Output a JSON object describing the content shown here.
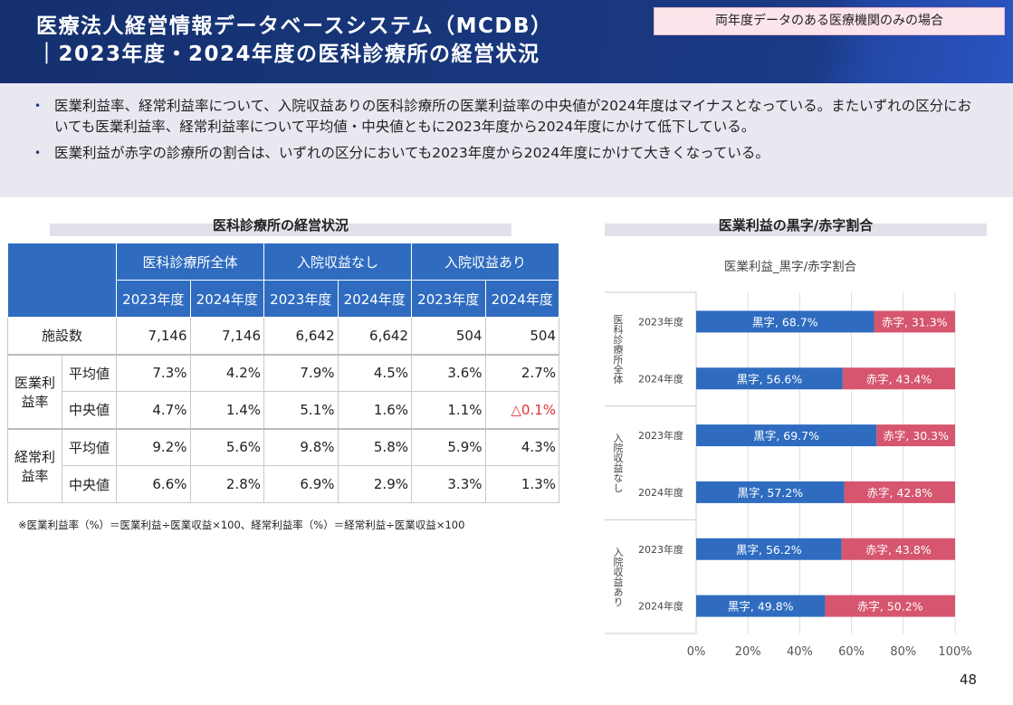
{
  "header": {
    "title_line1": "医療法人経営情報データベースシステム（MCDB）",
    "title_line2": "｜2023年度・2024年度の医科診療所の経営状況",
    "badge": "両年度データのある医療機関のみの場合"
  },
  "summary": [
    "医業利益率、経常利益率について、入院収益ありの医科診療所の医業利益率の中央値が2024年度はマイナスとなっている。またいずれの区分においても医業利益率、経常利益率について平均値・中央値ともに2023年度から2024年度にかけて低下している。",
    "医業利益が赤字の診療所の割合は、いずれの区分においても2023年度から2024年度にかけて大きくなっている。"
  ],
  "table": {
    "section_title": "医科診療所の経営状況",
    "groups": [
      "医科診療所全体",
      "入院収益なし",
      "入院収益あり"
    ],
    "years": [
      "2023年度",
      "2024年度",
      "2023年度",
      "2024年度",
      "2023年度",
      "2024年度"
    ],
    "facilities": {
      "label": "施設数",
      "values": [
        "7,146",
        "7,146",
        "6,642",
        "6,642",
        "504",
        "504"
      ]
    },
    "metrics": [
      {
        "label": "医業利益率",
        "rows": [
          {
            "label": "平均値",
            "values": [
              "7.3%",
              "4.2%",
              "7.9%",
              "4.5%",
              "3.6%",
              "2.7%"
            ]
          },
          {
            "label": "中央値",
            "values": [
              "4.7%",
              "1.4%",
              "5.1%",
              "1.6%",
              "1.1%",
              "△0.1%"
            ]
          }
        ]
      },
      {
        "label": "経常利益率",
        "rows": [
          {
            "label": "平均値",
            "values": [
              "9.2%",
              "5.6%",
              "9.8%",
              "5.8%",
              "5.9%",
              "4.3%"
            ]
          },
          {
            "label": "中央値",
            "values": [
              "6.6%",
              "2.8%",
              "6.9%",
              "2.9%",
              "3.3%",
              "1.3%"
            ]
          }
        ]
      }
    ],
    "negative_color": "#e03030",
    "note": "※医業利益率（%）＝医業利益÷医業収益×100、経常利益率（%）＝経常利益÷医業収益×100"
  },
  "chart_section_title": "医業利益の黒字/赤字割合",
  "chart_data": {
    "type": "bar",
    "orientation": "horizontal-stacked-100",
    "title": "医業利益_黒字/赤字割合",
    "groups": [
      "医科診療所全体",
      "入院収益なし",
      "入院収益あり"
    ],
    "categories": [
      "2023年度",
      "2024年度",
      "2023年度",
      "2024年度",
      "2023年度",
      "2024年度"
    ],
    "series": [
      {
        "name": "黒字",
        "color": "#2f6cc0",
        "values": [
          68.7,
          56.6,
          69.7,
          57.2,
          56.2,
          49.8
        ]
      },
      {
        "name": "赤字",
        "color": "#d6566f",
        "values": [
          31.3,
          43.4,
          30.3,
          42.8,
          43.8,
          50.2
        ]
      }
    ],
    "xlim": [
      0,
      100
    ],
    "xticks": [
      "0%",
      "20%",
      "40%",
      "60%",
      "80%",
      "100%"
    ],
    "grid": true
  },
  "page_number": "48"
}
